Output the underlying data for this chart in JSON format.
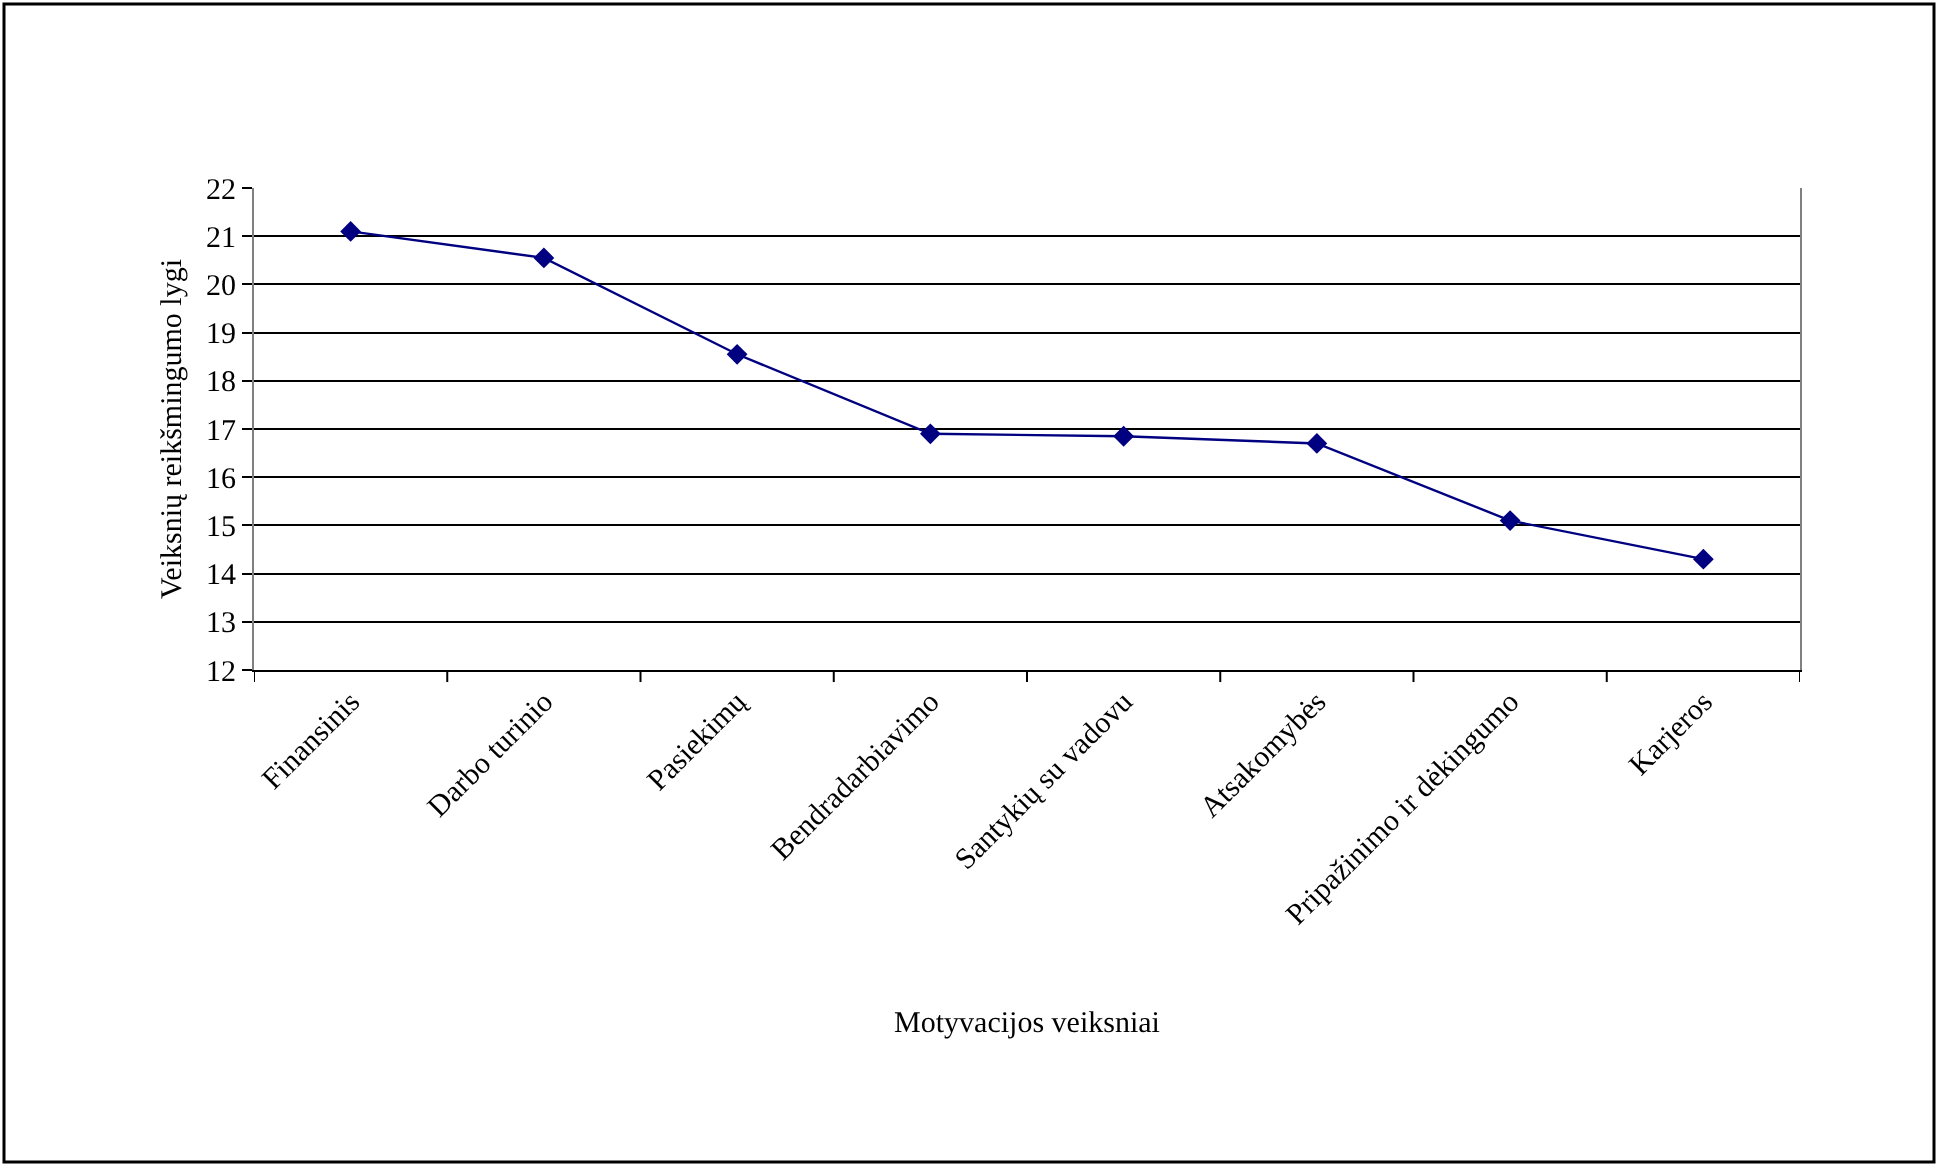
{
  "chart_data": {
    "type": "line",
    "xlabel": "Motyvacijos veiksniai",
    "ylabel": "Veiksnių reikšmingumo lygi",
    "categories": [
      "Finansinis",
      "Darbo turinio",
      "Pasiekimų",
      "Bendradarbiavimo",
      "Santykių su vadovu",
      "Atsakomybės",
      "Pripažinimo ir dėkingumo",
      "Karjeros"
    ],
    "series": [
      {
        "color": "#000080",
        "values": [
          21.1,
          20.55,
          18.55,
          16.9,
          16.85,
          16.7,
          15.1,
          14.3
        ]
      }
    ],
    "ylim": [
      12,
      22
    ],
    "yticks": [
      12,
      13,
      14,
      15,
      16,
      17,
      18,
      19,
      20,
      21,
      22
    ],
    "grid": "y",
    "legend": false,
    "marker": "diamond",
    "line_style": "solid"
  }
}
